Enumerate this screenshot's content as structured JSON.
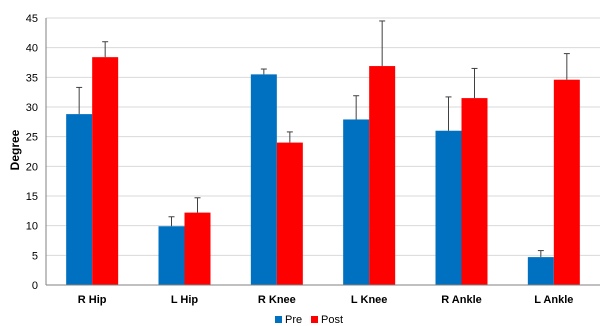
{
  "chart_data": {
    "type": "bar",
    "ylabel": "Degree",
    "xlabel": "",
    "ylim": [
      0,
      45
    ],
    "yticks": [
      0,
      5,
      10,
      15,
      20,
      25,
      30,
      35,
      40,
      45
    ],
    "grid": true,
    "legend": "bottom",
    "categories": [
      "R Hip",
      "L Hip",
      "R Knee",
      "L Knee",
      "R Ankle",
      "L Ankle"
    ],
    "series": [
      {
        "name": "Pre",
        "color": "#0070C0",
        "values": [
          28.8,
          9.9,
          35.5,
          27.9,
          26.0,
          4.7
        ],
        "error": [
          4.5,
          1.6,
          0.9,
          4.0,
          5.7,
          1.1
        ]
      },
      {
        "name": "Post",
        "color": "#FF0000",
        "values": [
          38.4,
          12.2,
          24.0,
          36.9,
          31.5,
          34.6
        ],
        "error": [
          2.6,
          2.5,
          1.8,
          7.6,
          5.0,
          4.4
        ]
      }
    ]
  }
}
